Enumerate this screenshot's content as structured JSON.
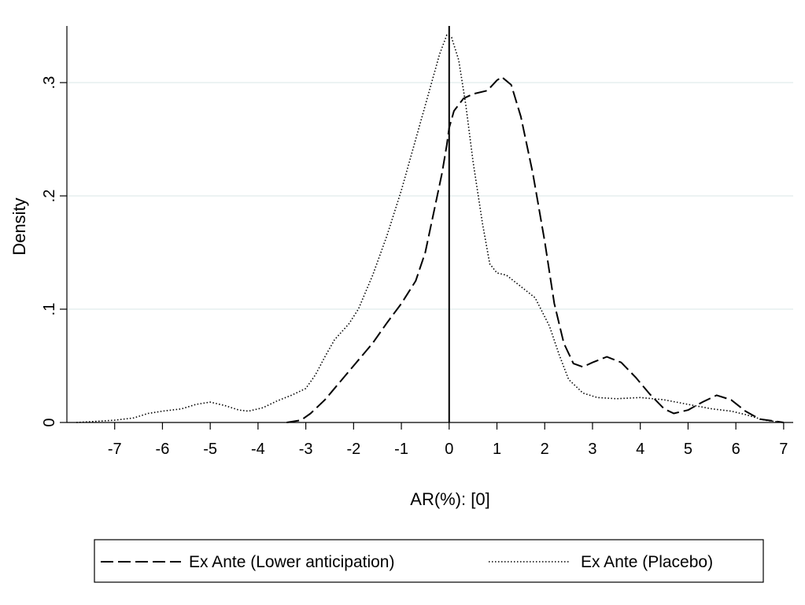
{
  "chart_data": {
    "type": "line",
    "title": "",
    "xlabel": "AR(%): [0]",
    "ylabel": "Density",
    "xlim": [
      -8,
      7.2
    ],
    "ylim": [
      0,
      0.35
    ],
    "x_ticks": [
      -7,
      -6,
      -5,
      -4,
      -3,
      -2,
      -1,
      0,
      1,
      2,
      3,
      4,
      5,
      6,
      7
    ],
    "x_tick_labels": [
      "-7",
      "-6",
      "-5",
      "-4",
      "-3",
      "-2",
      "-1",
      "0",
      "1",
      "2",
      "3",
      "4",
      "5",
      "6",
      "7"
    ],
    "y_ticks": [
      0,
      0.1,
      0.2,
      0.3
    ],
    "y_tick_labels": [
      "0",
      ".1",
      ".2",
      ".3"
    ],
    "grid": "horizontal",
    "reference_line_x": 0,
    "legend_position": "bottom",
    "colors": {
      "grid": "#e6efef",
      "line": "#000000"
    },
    "series": [
      {
        "name": "Ex Ante (Lower anticipation)",
        "style": "dashed",
        "points": [
          [
            -3.4,
            0.0
          ],
          [
            -3.1,
            0.002
          ],
          [
            -2.9,
            0.008
          ],
          [
            -2.6,
            0.02
          ],
          [
            -2.3,
            0.035
          ],
          [
            -2.0,
            0.05
          ],
          [
            -1.6,
            0.07
          ],
          [
            -1.3,
            0.088
          ],
          [
            -1.0,
            0.105
          ],
          [
            -0.7,
            0.125
          ],
          [
            -0.5,
            0.15
          ],
          [
            -0.3,
            0.19
          ],
          [
            -0.15,
            0.22
          ],
          [
            -0.05,
            0.245
          ],
          [
            0.0,
            0.26
          ],
          [
            0.1,
            0.275
          ],
          [
            0.3,
            0.286
          ],
          [
            0.5,
            0.29
          ],
          [
            0.8,
            0.293
          ],
          [
            1.0,
            0.302
          ],
          [
            1.1,
            0.305
          ],
          [
            1.3,
            0.298
          ],
          [
            1.5,
            0.27
          ],
          [
            1.75,
            0.22
          ],
          [
            2.0,
            0.16
          ],
          [
            2.2,
            0.105
          ],
          [
            2.4,
            0.07
          ],
          [
            2.6,
            0.052
          ],
          [
            2.8,
            0.049
          ],
          [
            3.0,
            0.053
          ],
          [
            3.3,
            0.058
          ],
          [
            3.6,
            0.053
          ],
          [
            3.9,
            0.04
          ],
          [
            4.2,
            0.025
          ],
          [
            4.5,
            0.012
          ],
          [
            4.7,
            0.008
          ],
          [
            5.0,
            0.011
          ],
          [
            5.3,
            0.018
          ],
          [
            5.6,
            0.024
          ],
          [
            5.9,
            0.02
          ],
          [
            6.2,
            0.01
          ],
          [
            6.5,
            0.003
          ],
          [
            7.0,
            0.0
          ]
        ]
      },
      {
        "name": "Ex Ante (Placebo)",
        "style": "dotted",
        "points": [
          [
            -7.8,
            0.0
          ],
          [
            -7.4,
            0.001
          ],
          [
            -7.0,
            0.002
          ],
          [
            -6.6,
            0.004
          ],
          [
            -6.3,
            0.008
          ],
          [
            -6.0,
            0.01
          ],
          [
            -5.6,
            0.012
          ],
          [
            -5.3,
            0.016
          ],
          [
            -5.0,
            0.018
          ],
          [
            -4.7,
            0.015
          ],
          [
            -4.4,
            0.011
          ],
          [
            -4.2,
            0.01
          ],
          [
            -3.9,
            0.013
          ],
          [
            -3.6,
            0.019
          ],
          [
            -3.3,
            0.024
          ],
          [
            -3.0,
            0.03
          ],
          [
            -2.8,
            0.042
          ],
          [
            -2.6,
            0.058
          ],
          [
            -2.4,
            0.073
          ],
          [
            -2.1,
            0.087
          ],
          [
            -1.9,
            0.1
          ],
          [
            -1.6,
            0.13
          ],
          [
            -1.3,
            0.165
          ],
          [
            -1.0,
            0.205
          ],
          [
            -0.7,
            0.25
          ],
          [
            -0.4,
            0.295
          ],
          [
            -0.2,
            0.325
          ],
          [
            -0.05,
            0.342
          ],
          [
            0.05,
            0.34
          ],
          [
            0.2,
            0.32
          ],
          [
            0.35,
            0.28
          ],
          [
            0.5,
            0.23
          ],
          [
            0.7,
            0.175
          ],
          [
            0.85,
            0.14
          ],
          [
            1.0,
            0.132
          ],
          [
            1.2,
            0.13
          ],
          [
            1.5,
            0.12
          ],
          [
            1.8,
            0.11
          ],
          [
            2.1,
            0.085
          ],
          [
            2.3,
            0.06
          ],
          [
            2.5,
            0.038
          ],
          [
            2.8,
            0.026
          ],
          [
            3.1,
            0.022
          ],
          [
            3.5,
            0.021
          ],
          [
            4.0,
            0.022
          ],
          [
            4.5,
            0.02
          ],
          [
            5.0,
            0.016
          ],
          [
            5.5,
            0.012
          ],
          [
            5.9,
            0.01
          ],
          [
            6.2,
            0.007
          ],
          [
            6.6,
            0.002
          ],
          [
            7.0,
            0.0
          ]
        ]
      }
    ]
  }
}
